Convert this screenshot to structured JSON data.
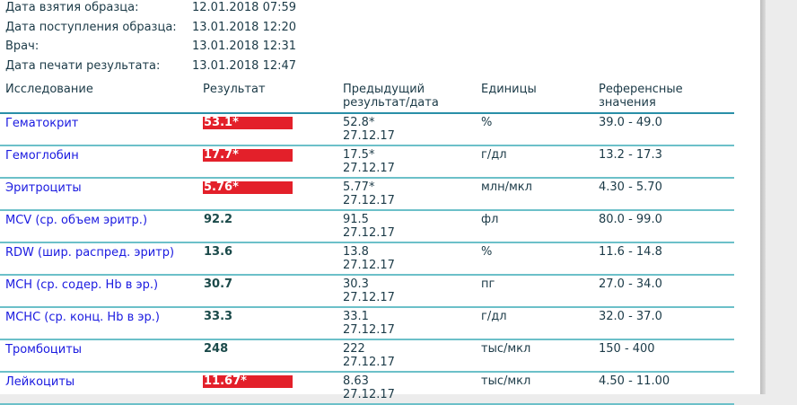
{
  "meta": [
    {
      "label": "Дата взятия образца:",
      "value": "12.01.2018 07:59"
    },
    {
      "label": "Дата поступления образца:",
      "value": "13.01.2018 12:20"
    },
    {
      "label": "Врач:",
      "value": "13.01.2018 12:31"
    },
    {
      "label": "Дата печати результата:",
      "value": "13.01.2018 12:47"
    }
  ],
  "table": {
    "headers": {
      "test": "Исследование",
      "result": "Результат",
      "prev1": "Предыдущий",
      "prev2": "результат/дата",
      "units": "Единицы",
      "ref1": "Референсные",
      "ref2": "значения"
    },
    "flag_color": "#e3202a",
    "rows": [
      {
        "test": "Гематокрит",
        "result": "53.1*",
        "flagged": true,
        "prev": "52.8*",
        "prev_date": "27.12.17",
        "units": "%",
        "ref": "39.0 - 49.0"
      },
      {
        "test": "Гемоглобин",
        "result": "17.7*",
        "flagged": true,
        "prev": "17.5*",
        "prev_date": "27.12.17",
        "units": "г/дл",
        "ref": "13.2 - 17.3"
      },
      {
        "test": "Эритроциты",
        "result": "5.76*",
        "flagged": true,
        "prev": "5.77*",
        "prev_date": "27.12.17",
        "units": "млн/мкл",
        "ref": "4.30 - 5.70"
      },
      {
        "test": "MCV (ср. объем эритр.)",
        "result": "92.2",
        "flagged": false,
        "prev": "91.5",
        "prev_date": "27.12.17",
        "units": "фл",
        "ref": "80.0 - 99.0"
      },
      {
        "test": "RDW (шир. распред. эритр)",
        "result": "13.6",
        "flagged": false,
        "prev": "13.8",
        "prev_date": "27.12.17",
        "units": "%",
        "ref": "11.6 - 14.8"
      },
      {
        "test": "MCH (ср. содер. Hb в эр.)",
        "result": "30.7",
        "flagged": false,
        "prev": "30.3",
        "prev_date": "27.12.17",
        "units": "пг",
        "ref": "27.0 - 34.0"
      },
      {
        "test": "MCHC (ср. конц. Hb в эр.)",
        "result": "33.3",
        "flagged": false,
        "prev": "33.1",
        "prev_date": "27.12.17",
        "units": "г/дл",
        "ref": "32.0 - 37.0"
      },
      {
        "test": "Тромбоциты",
        "result": "248",
        "flagged": false,
        "prev": "222",
        "prev_date": "27.12.17",
        "units": "тыс/мкл",
        "ref": "150 - 400"
      },
      {
        "test": "Лейкоциты",
        "result": "11.67*",
        "flagged": true,
        "prev": "8.63",
        "prev_date": "27.12.17",
        "units": "тыс/мкл",
        "ref": "4.50 - 11.00"
      }
    ]
  }
}
